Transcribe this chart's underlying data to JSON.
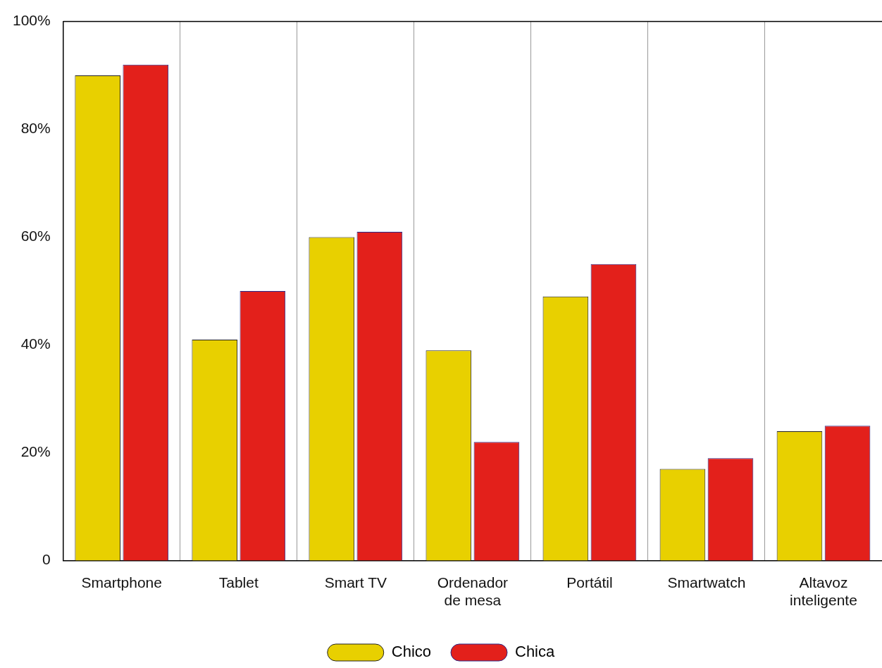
{
  "chart_data": {
    "type": "bar",
    "categories": [
      "Smartphone",
      "Tablet",
      "Smart TV",
      "Ordenador de mesa",
      "Portátil",
      "Smartwatch",
      "Altavoz inteligente"
    ],
    "series": [
      {
        "name": "Chico",
        "color": "#e8d000",
        "values": [
          90,
          41,
          60,
          39,
          49,
          17,
          24
        ]
      },
      {
        "name": "Chica",
        "color": "#e3201b",
        "values": [
          92,
          50,
          61,
          22,
          55,
          19,
          25
        ]
      }
    ],
    "ylim": [
      0,
      100
    ],
    "yticks": [
      0,
      {
        "value": 20,
        "label": "20%"
      },
      {
        "value": 40,
        "label": "40%"
      },
      {
        "value": 60,
        "label": "60%"
      },
      {
        "value": 80,
        "label": "80%"
      },
      {
        "value": 100,
        "label": "100%"
      }
    ],
    "grid": "x",
    "legend": "bottom"
  }
}
